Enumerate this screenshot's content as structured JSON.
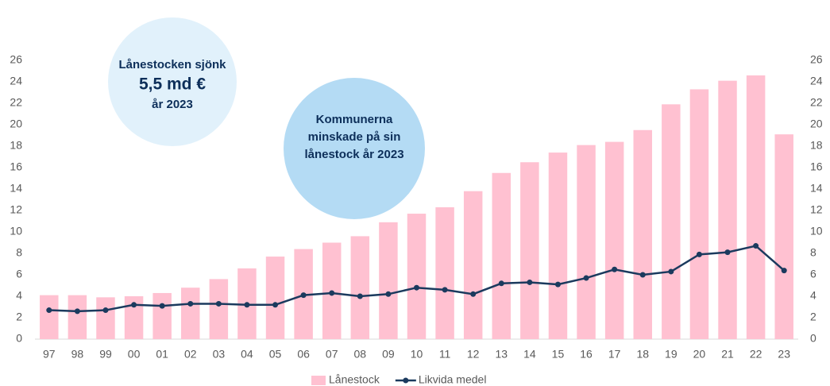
{
  "chart_data": {
    "type": "bar",
    "categories": [
      "97",
      "98",
      "99",
      "00",
      "01",
      "02",
      "03",
      "04",
      "05",
      "06",
      "07",
      "08",
      "09",
      "10",
      "11",
      "12",
      "13",
      "14",
      "15",
      "16",
      "17",
      "18",
      "19",
      "20",
      "21",
      "22",
      "23"
    ],
    "series": [
      {
        "name": "Lånestock",
        "type": "bar",
        "color": "#ffc1d1",
        "values": [
          4.1,
          4.1,
          3.9,
          4.0,
          4.3,
          4.8,
          5.6,
          6.6,
          7.7,
          8.4,
          9.0,
          9.6,
          10.9,
          11.7,
          12.3,
          13.8,
          15.5,
          16.5,
          17.4,
          18.1,
          18.4,
          19.5,
          21.9,
          23.3,
          24.1,
          24.6,
          19.1
        ]
      },
      {
        "name": "Likvida medel",
        "type": "line",
        "axis": "y2",
        "color": "#1b3a5e",
        "values": [
          2.7,
          2.6,
          2.7,
          3.2,
          3.1,
          3.3,
          3.3,
          3.2,
          3.2,
          4.1,
          4.3,
          4.0,
          4.2,
          4.8,
          4.6,
          4.2,
          5.2,
          5.3,
          5.1,
          5.7,
          6.5,
          6.0,
          6.3,
          7.9,
          8.1,
          8.7,
          6.4
        ]
      }
    ],
    "ylim": [
      0,
      26
    ],
    "yticks": [
      0,
      2,
      4,
      6,
      8,
      10,
      12,
      14,
      16,
      18,
      20,
      22,
      24,
      26
    ],
    "y2lim": [
      0,
      26
    ],
    "y2ticks": [
      0,
      2,
      4,
      6,
      8,
      10,
      12,
      14,
      16,
      18,
      20,
      22,
      24,
      26
    ],
    "annotations": [
      [
        "Lånestocken sjönk",
        "5,5 md €",
        "år 2023"
      ],
      [
        "Kommunerna",
        "minskade på sin",
        "lånestock år 2023"
      ]
    ],
    "legend": "bottom"
  }
}
